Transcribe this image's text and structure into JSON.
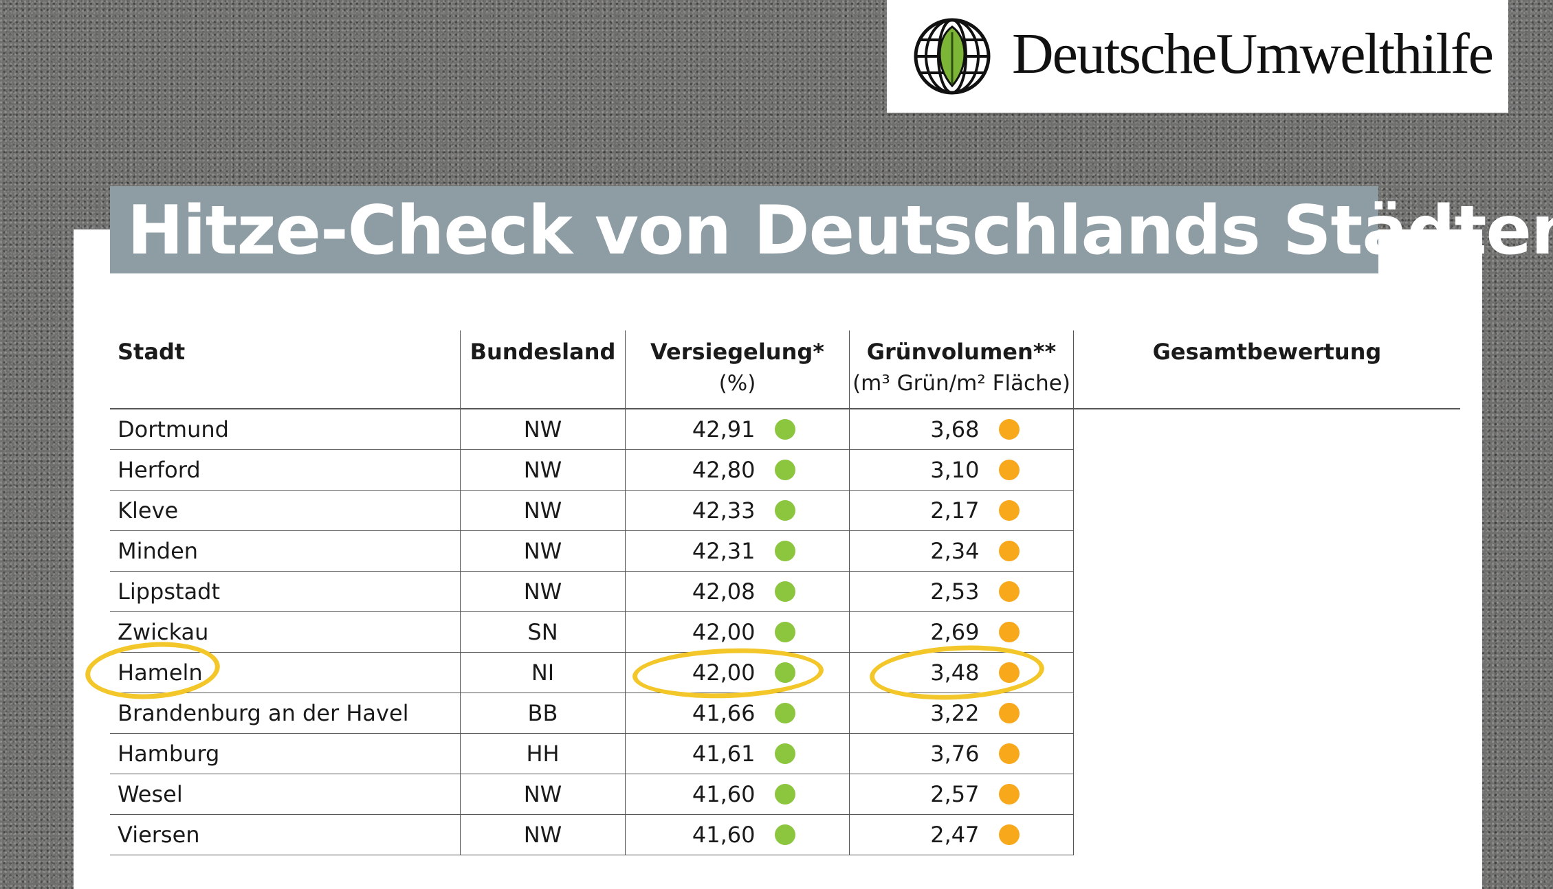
{
  "logo": {
    "text": "DeutscheUmwelthilfe",
    "icon": "leaf-globe-icon"
  },
  "title": "Hitze-Check von Deutschlands Städten",
  "table": {
    "headers": [
      {
        "label": "Stadt",
        "sub": ""
      },
      {
        "label": "Bundesland",
        "sub": ""
      },
      {
        "label": "Versiegelung*",
        "sub": "(%)"
      },
      {
        "label": "Grünvolumen**",
        "sub": "(m³ Grün/m² Fläche)"
      },
      {
        "label": "Gesamtbewertung",
        "sub": ""
      }
    ],
    "rows": [
      {
        "stadt": "Dortmund",
        "land": "NW",
        "versiegelung": "42,91",
        "gruen": "3,68"
      },
      {
        "stadt": "Herford",
        "land": "NW",
        "versiegelung": "42,80",
        "gruen": "3,10"
      },
      {
        "stadt": "Kleve",
        "land": "NW",
        "versiegelung": "42,33",
        "gruen": "2,17"
      },
      {
        "stadt": "Minden",
        "land": "NW",
        "versiegelung": "42,31",
        "gruen": "2,34"
      },
      {
        "stadt": "Lippstadt",
        "land": "NW",
        "versiegelung": "42,08",
        "gruen": "2,53"
      },
      {
        "stadt": "Zwickau",
        "land": "SN",
        "versiegelung": "42,00",
        "gruen": "2,69"
      },
      {
        "stadt": "Hameln",
        "land": "NI",
        "versiegelung": "42,00",
        "gruen": "3,48"
      },
      {
        "stadt": "Brandenburg an der Havel",
        "land": "BB",
        "versiegelung": "41,66",
        "gruen": "3,22"
      },
      {
        "stadt": "Hamburg",
        "land": "HH",
        "versiegelung": "41,61",
        "gruen": "3,76"
      },
      {
        "stadt": "Wesel",
        "land": "NW",
        "versiegelung": "41,60",
        "gruen": "2,57"
      },
      {
        "stadt": "Viersen",
        "land": "NW",
        "versiegelung": "41,60",
        "gruen": "2,47"
      }
    ]
  },
  "colors": {
    "versiegelung_dot": "#8cc63f",
    "gruen_dot": "#f7a81b",
    "highlight": "#f3c729",
    "title_bar": "#8e9da3"
  },
  "highlighted_row": "Hameln"
}
